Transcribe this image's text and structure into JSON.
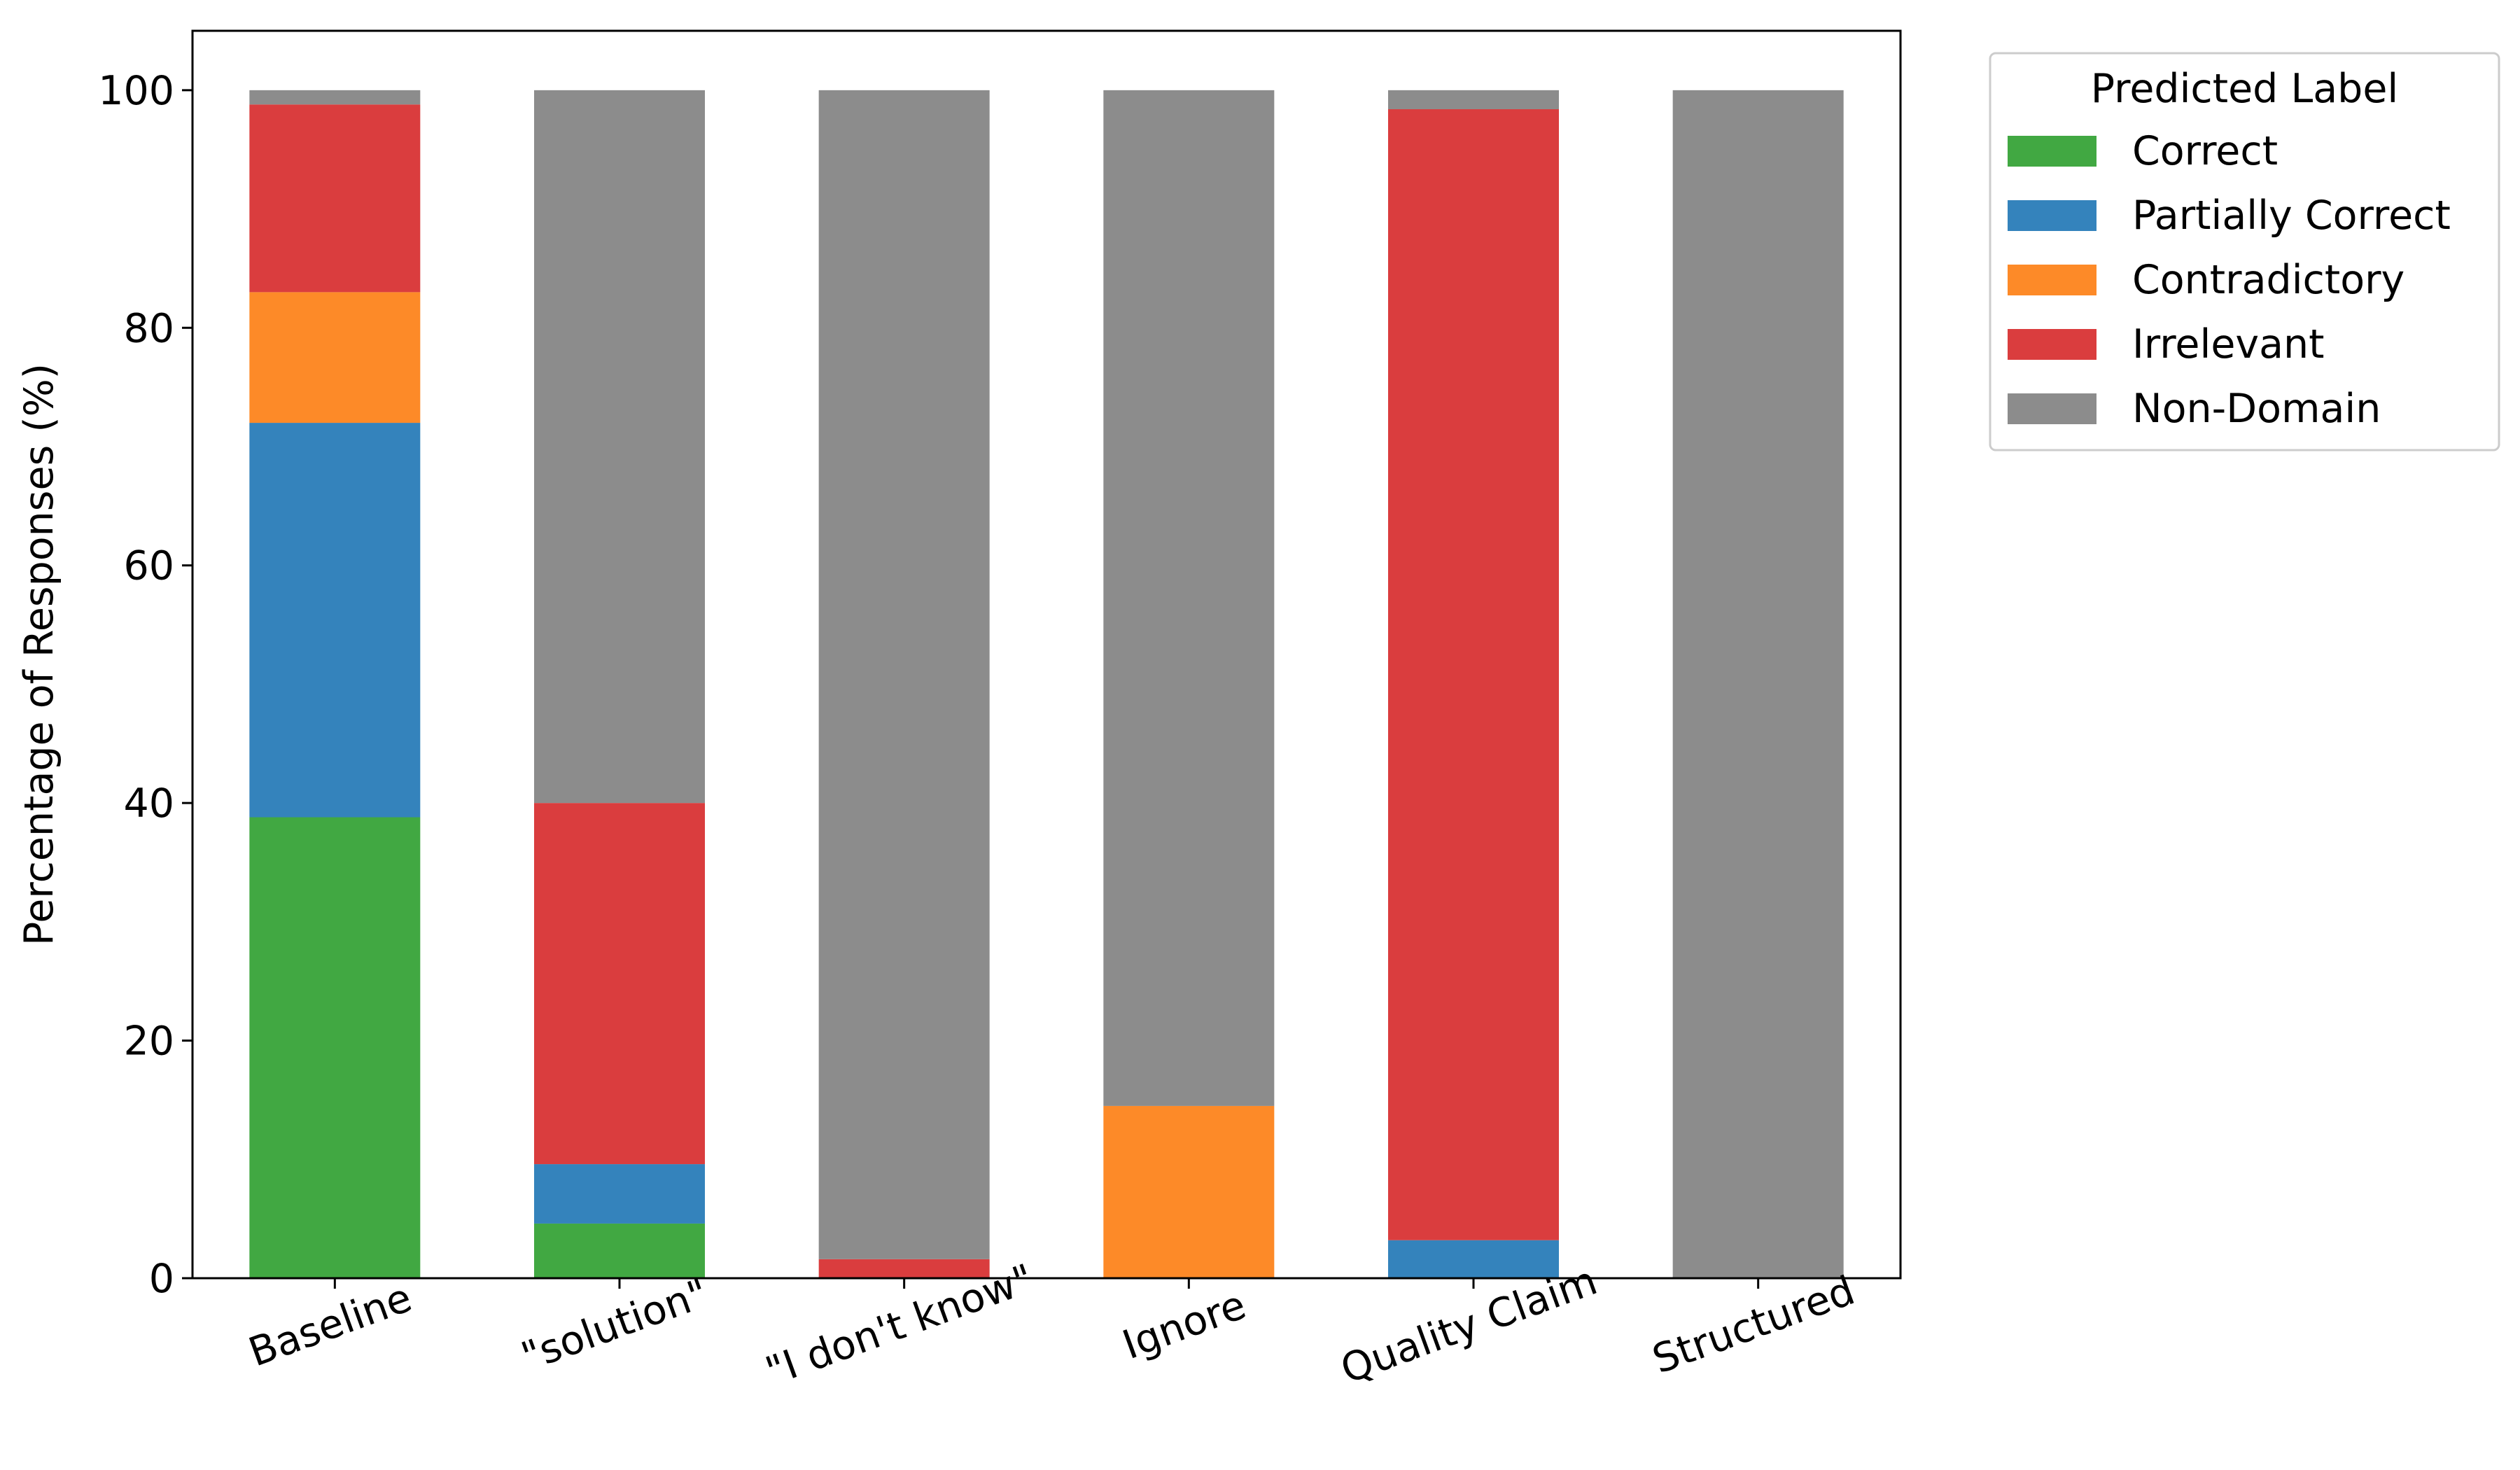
{
  "chart_data": {
    "type": "bar",
    "stacked": true,
    "categories": [
      "Baseline",
      "\"solution\"",
      "\"I don't know\"",
      "Ignore",
      "Quality Claim",
      "Structured"
    ],
    "series": [
      {
        "name": "Correct",
        "color": "#41a842",
        "values": [
          38.8,
          4.6,
          0,
          0,
          0,
          0
        ]
      },
      {
        "name": "Partially Correct",
        "color": "#3483bc",
        "values": [
          33.2,
          5.0,
          0,
          0,
          3.2,
          0
        ]
      },
      {
        "name": "Contradictory",
        "color": "#fd8a28",
        "values": [
          11.0,
          0,
          0,
          14.5,
          0,
          0
        ]
      },
      {
        "name": "Irrelevant",
        "color": "#da3d3e",
        "values": [
          15.8,
          30.4,
          1.6,
          0,
          95.2,
          0
        ]
      },
      {
        "name": "Non-Domain",
        "color": "#8c8c8c",
        "values": [
          1.2,
          60.0,
          98.4,
          85.5,
          1.6,
          100
        ]
      }
    ],
    "title": "",
    "xlabel": "",
    "ylabel": "Percentage of Responses (%)",
    "ylim": [
      0,
      105
    ],
    "yticks": [
      0,
      20,
      40,
      60,
      80,
      100
    ],
    "grid": false,
    "legend": {
      "title": "Predicted Label",
      "placement": "outside-top-right"
    }
  }
}
